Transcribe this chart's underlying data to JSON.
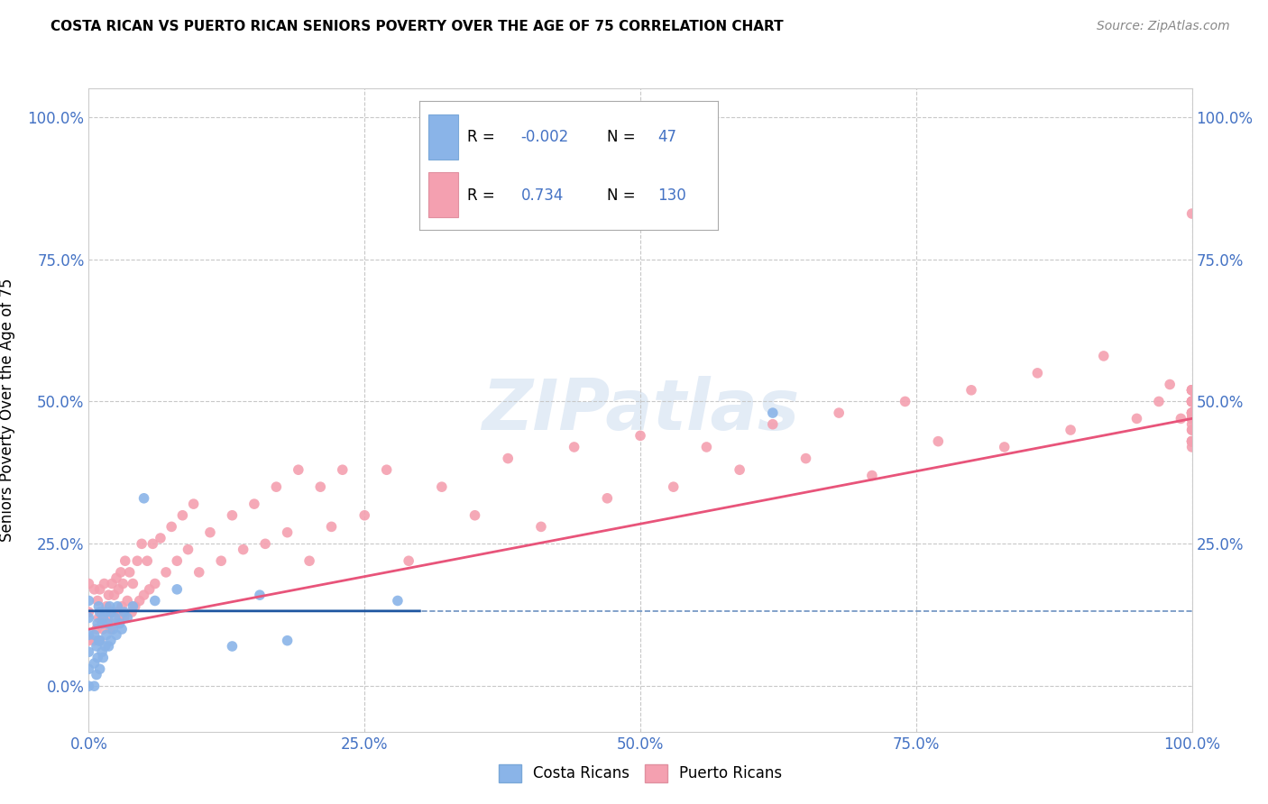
{
  "title": "COSTA RICAN VS PUERTO RICAN SENIORS POVERTY OVER THE AGE OF 75 CORRELATION CHART",
  "source": "Source: ZipAtlas.com",
  "ylabel": "Seniors Poverty Over the Age of 75",
  "xlabel": "",
  "xlim": [
    0,
    1.0
  ],
  "ylim": [
    -0.08,
    1.05
  ],
  "xticks": [
    0.0,
    0.25,
    0.5,
    0.75,
    1.0
  ],
  "yticks": [
    0.0,
    0.25,
    0.5,
    0.75,
    1.0
  ],
  "xticklabels": [
    "0.0%",
    "25.0%",
    "50.0%",
    "75.0%",
    "100.0%"
  ],
  "yticklabels": [
    "0.0%",
    "25.0%",
    "50.0%",
    "75.0%",
    "100.0%"
  ],
  "right_yticks": [
    1.0,
    0.75,
    0.5,
    0.25
  ],
  "right_yticklabels": [
    "100.0%",
    "75.0%",
    "50.0%",
    "25.0%"
  ],
  "costa_rican_color": "#8ab4e8",
  "puerto_rican_color": "#f4a0b0",
  "costa_rican_line_color": "#1e56a0",
  "puerto_rican_line_color": "#e8547a",
  "watermark": "ZIPatlas",
  "background_color": "#ffffff",
  "grid_color": "#c8c8c8",
  "axis_label_color": "#4472c4",
  "legend_R_costa": "-0.002",
  "legend_N_costa": "47",
  "legend_R_puerto": "0.734",
  "legend_N_puerto": "130",
  "costa_rican_x": [
    0.0,
    0.0,
    0.0,
    0.0,
    0.0,
    0.0,
    0.005,
    0.005,
    0.005,
    0.007,
    0.007,
    0.008,
    0.008,
    0.009,
    0.009,
    0.01,
    0.01,
    0.01,
    0.012,
    0.012,
    0.013,
    0.013,
    0.015,
    0.015,
    0.016,
    0.017,
    0.018,
    0.019,
    0.02,
    0.02,
    0.022,
    0.024,
    0.025,
    0.026,
    0.028,
    0.03,
    0.032,
    0.035,
    0.04,
    0.05,
    0.06,
    0.08,
    0.13,
    0.155,
    0.18,
    0.28,
    0.62
  ],
  "costa_rican_y": [
    0.0,
    0.03,
    0.06,
    0.09,
    0.12,
    0.15,
    0.0,
    0.04,
    0.09,
    0.02,
    0.07,
    0.05,
    0.11,
    0.08,
    0.14,
    0.03,
    0.08,
    0.13,
    0.06,
    0.11,
    0.05,
    0.12,
    0.07,
    0.13,
    0.09,
    0.11,
    0.07,
    0.14,
    0.08,
    0.13,
    0.1,
    0.12,
    0.09,
    0.14,
    0.11,
    0.1,
    0.13,
    0.12,
    0.14,
    0.33,
    0.15,
    0.17,
    0.07,
    0.16,
    0.08,
    0.15,
    0.48
  ],
  "puerto_rican_x": [
    0.0,
    0.0,
    0.0,
    0.005,
    0.005,
    0.007,
    0.008,
    0.009,
    0.01,
    0.01,
    0.012,
    0.013,
    0.014,
    0.015,
    0.016,
    0.017,
    0.018,
    0.019,
    0.02,
    0.021,
    0.022,
    0.023,
    0.024,
    0.025,
    0.026,
    0.027,
    0.028,
    0.029,
    0.03,
    0.031,
    0.032,
    0.033,
    0.035,
    0.037,
    0.039,
    0.04,
    0.042,
    0.044,
    0.046,
    0.048,
    0.05,
    0.053,
    0.055,
    0.058,
    0.06,
    0.065,
    0.07,
    0.075,
    0.08,
    0.085,
    0.09,
    0.095,
    0.1,
    0.11,
    0.12,
    0.13,
    0.14,
    0.15,
    0.16,
    0.17,
    0.18,
    0.19,
    0.2,
    0.21,
    0.22,
    0.23,
    0.25,
    0.27,
    0.29,
    0.32,
    0.35,
    0.38,
    0.41,
    0.44,
    0.47,
    0.5,
    0.53,
    0.56,
    0.59,
    0.62,
    0.65,
    0.68,
    0.71,
    0.74,
    0.77,
    0.8,
    0.83,
    0.86,
    0.89,
    0.92,
    0.95,
    0.97,
    0.98,
    0.99,
    1.0,
    1.0,
    1.0,
    1.0,
    1.0,
    1.0,
    1.0,
    1.0,
    1.0,
    1.0,
    1.0,
    1.0,
    1.0,
    1.0,
    1.0,
    1.0,
    1.0,
    1.0,
    1.0,
    1.0,
    1.0,
    1.0,
    1.0,
    1.0,
    1.0,
    1.0,
    1.0,
    1.0,
    1.0,
    1.0,
    1.0,
    1.0,
    1.0,
    1.0,
    1.0,
    1.0
  ],
  "puerto_rican_y": [
    0.08,
    0.13,
    0.18,
    0.08,
    0.17,
    0.1,
    0.15,
    0.12,
    0.08,
    0.17,
    0.12,
    0.1,
    0.18,
    0.11,
    0.14,
    0.12,
    0.16,
    0.11,
    0.1,
    0.18,
    0.13,
    0.16,
    0.11,
    0.19,
    0.13,
    0.17,
    0.12,
    0.2,
    0.14,
    0.18,
    0.12,
    0.22,
    0.15,
    0.2,
    0.13,
    0.18,
    0.14,
    0.22,
    0.15,
    0.25,
    0.16,
    0.22,
    0.17,
    0.25,
    0.18,
    0.26,
    0.2,
    0.28,
    0.22,
    0.3,
    0.24,
    0.32,
    0.2,
    0.27,
    0.22,
    0.3,
    0.24,
    0.32,
    0.25,
    0.35,
    0.27,
    0.38,
    0.22,
    0.35,
    0.28,
    0.38,
    0.3,
    0.38,
    0.22,
    0.35,
    0.3,
    0.4,
    0.28,
    0.42,
    0.33,
    0.44,
    0.35,
    0.42,
    0.38,
    0.46,
    0.4,
    0.48,
    0.37,
    0.5,
    0.43,
    0.52,
    0.42,
    0.55,
    0.45,
    0.58,
    0.47,
    0.5,
    0.53,
    0.47,
    0.5,
    0.45,
    0.48,
    0.42,
    0.5,
    0.47,
    0.52,
    0.45,
    0.5,
    0.48,
    0.43,
    0.5,
    0.52,
    0.47,
    0.5,
    0.43,
    0.48,
    0.52,
    0.47,
    0.5,
    0.43,
    0.48,
    0.52,
    0.46,
    0.5,
    0.43,
    0.48,
    0.83,
    0.52,
    0.47,
    0.5,
    0.43,
    0.48,
    0.52,
    0.47,
    0.5
  ]
}
